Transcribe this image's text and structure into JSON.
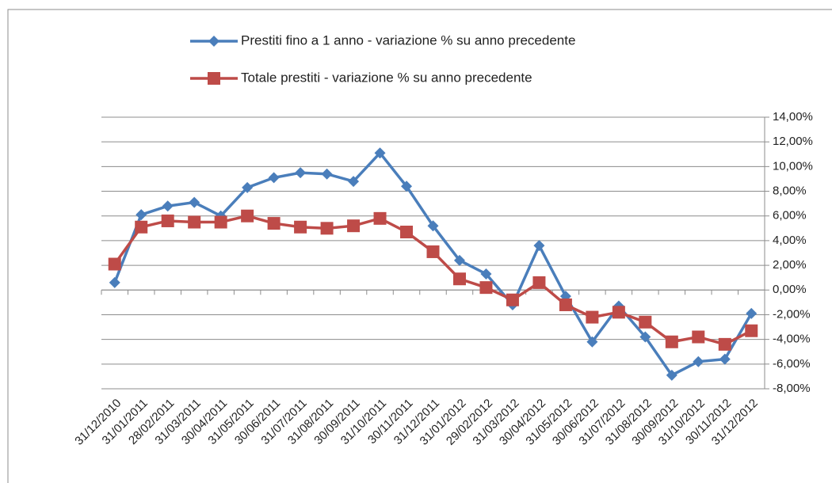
{
  "chart_data": {
    "type": "line",
    "categories": [
      "31/12/2010",
      "31/01/2011",
      "28/02/2011",
      "31/03/2011",
      "30/04/2011",
      "31/05/2011",
      "30/06/2011",
      "31/07/2011",
      "31/08/2011",
      "30/09/2011",
      "31/10/2011",
      "30/11/2011",
      "31/12/2011",
      "31/01/2012",
      "29/02/2012",
      "31/03/2012",
      "30/04/2012",
      "31/05/2012",
      "30/06/2012",
      "31/07/2012",
      "31/08/2012",
      "30/09/2012",
      "31/10/2012",
      "30/11/2012",
      "31/12/2012"
    ],
    "series": [
      {
        "name": "Prestiti fino a 1 anno - variazione % su anno precedente",
        "color": "#4a7ebb",
        "marker": "diamond",
        "values": [
          0.6,
          6.1,
          6.8,
          7.1,
          6.0,
          8.3,
          9.1,
          9.5,
          9.4,
          8.8,
          11.1,
          8.4,
          5.2,
          2.4,
          1.3,
          -1.2,
          3.6,
          -0.5,
          -4.2,
          -1.3,
          -3.8,
          -6.9,
          -5.8,
          -5.6,
          -1.9
        ]
      },
      {
        "name": "Totale prestiti - variazione % su anno precedente",
        "color": "#be4b48",
        "marker": "square",
        "values": [
          2.1,
          5.1,
          5.6,
          5.5,
          5.5,
          6.0,
          5.4,
          5.1,
          5.0,
          5.2,
          5.8,
          4.7,
          3.1,
          0.9,
          0.2,
          -0.8,
          0.6,
          -1.2,
          -2.2,
          -1.8,
          -2.6,
          -4.2,
          -3.8,
          -4.4,
          -3.3
        ]
      }
    ],
    "ylim": [
      -8,
      14
    ],
    "yticks": [
      {
        "value": 14,
        "label": "14,00%"
      },
      {
        "value": 12,
        "label": "12,00%"
      },
      {
        "value": 10,
        "label": "10,00%"
      },
      {
        "value": 8,
        "label": "8,00%"
      },
      {
        "value": 6,
        "label": "6,00%"
      },
      {
        "value": 4,
        "label": "4,00%"
      },
      {
        "value": 2,
        "label": "2,00%"
      },
      {
        "value": 0,
        "label": "0,00%"
      },
      {
        "value": -2,
        "label": "-2,00%"
      },
      {
        "value": -4,
        "label": "-4,00%"
      },
      {
        "value": -6,
        "label": "-6,00%"
      },
      {
        "value": -8,
        "label": "-8,00%"
      }
    ],
    "grid": true,
    "y_axis_side": "right",
    "legend": "top"
  }
}
